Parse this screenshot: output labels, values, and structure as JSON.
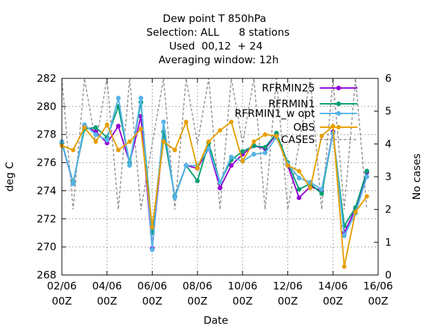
{
  "chart_data": {
    "type": "line",
    "title_lines": [
      "Dew point T 850hPa",
      "Selection: ALL      8 stations",
      "Used  00,12  + 24",
      "Averaging window: 12h"
    ],
    "xlabel": "Date",
    "ylabel": "deg C",
    "y2label": "No cases",
    "x_ticks": [
      {
        "day": 2,
        "line1": "02/06",
        "line2": "00Z"
      },
      {
        "day": 4,
        "line1": "04/06",
        "line2": "00Z"
      },
      {
        "day": 6,
        "line1": "06/06",
        "line2": "00Z"
      },
      {
        "day": 8,
        "line1": "08/06",
        "line2": "00Z"
      },
      {
        "day": 10,
        "line1": "10/06",
        "line2": "00Z"
      },
      {
        "day": 12,
        "line1": "12/06",
        "line2": "00Z"
      },
      {
        "day": 14,
        "line1": "14/06",
        "line2": "00Z"
      },
      {
        "day": 16,
        "line1": "16/06",
        "line2": "00Z"
      }
    ],
    "xlim": [
      2,
      16
    ],
    "ylim": [
      268,
      282
    ],
    "y_ticks": [
      "268",
      "270",
      "272",
      "274",
      "276",
      "278",
      "280",
      "282"
    ],
    "y2lim": [
      0,
      6
    ],
    "y2_ticks": [
      "0",
      "1",
      "2",
      "3",
      "4",
      "5",
      "6"
    ],
    "grid": true,
    "legend_position": "top-right",
    "x": [
      2.0,
      2.5,
      3.0,
      3.5,
      4.0,
      4.5,
      5.0,
      5.5,
      6.0,
      6.5,
      7.0,
      7.5,
      8.0,
      8.5,
      9.0,
      9.5,
      10.0,
      10.5,
      11.0,
      11.5,
      12.0,
      12.5,
      13.0,
      13.5,
      14.0,
      14.5,
      15.0,
      15.5
    ],
    "series": [
      {
        "name": "RFRMIN25",
        "color": "#9400d3",
        "marker": "plus",
        "axis": "y",
        "values": [
          277.4,
          274.5,
          278.6,
          278.2,
          277.4,
          278.6,
          276.0,
          279.3,
          269.9,
          278.2,
          273.6,
          275.8,
          275.6,
          277.0,
          274.2,
          275.8,
          276.6,
          277.2,
          277.0,
          278.0,
          275.8,
          273.5,
          274.3,
          274.0,
          278.2,
          271.0,
          272.7,
          275.3
        ]
      },
      {
        "name": "RFRMIN1",
        "color": "#009e73",
        "marker": "plus",
        "axis": "y",
        "values": [
          277.4,
          274.6,
          278.4,
          278.5,
          277.8,
          280.0,
          276.0,
          280.3,
          271.0,
          278.2,
          273.6,
          275.8,
          274.7,
          277.4,
          274.6,
          276.2,
          276.8,
          277.2,
          277.1,
          278.1,
          276.0,
          274.1,
          274.5,
          273.8,
          278.1,
          271.5,
          272.8,
          275.4
        ]
      },
      {
        "name": "RFRMIN1_w opt",
        "color": "#56b4e9",
        "marker": "plus",
        "axis": "y",
        "values": [
          277.5,
          274.5,
          278.7,
          278.0,
          277.6,
          280.6,
          275.8,
          280.6,
          269.8,
          278.9,
          273.5,
          275.8,
          275.8,
          277.0,
          274.6,
          276.4,
          276.1,
          276.6,
          276.7,
          277.8,
          275.9,
          274.9,
          274.6,
          274.1,
          278.1,
          270.8,
          272.4,
          275.0
        ]
      },
      {
        "name": "OBS",
        "color": "#e69f00",
        "marker": "circle",
        "axis": "y",
        "values": [
          277.2,
          276.9,
          278.5,
          277.5,
          278.7,
          276.9,
          277.5,
          278.4,
          271.4,
          277.5,
          276.9,
          278.9,
          275.6,
          277.5,
          278.3,
          278.9,
          276.1,
          277.5,
          278.0,
          277.9,
          275.8,
          275.4,
          274.2,
          277.9,
          278.6,
          268.6,
          272.5,
          273.6
        ]
      },
      {
        "name": "CASES",
        "color": "#909090",
        "marker": "none",
        "axis": "y2",
        "dashed": true,
        "values": [
          6,
          2,
          6,
          4,
          6,
          2,
          6,
          2,
          4,
          6,
          2,
          6,
          4,
          6,
          2,
          6,
          4,
          6,
          2,
          6,
          2,
          4,
          6,
          2,
          6,
          2,
          6,
          2
        ]
      }
    ]
  }
}
